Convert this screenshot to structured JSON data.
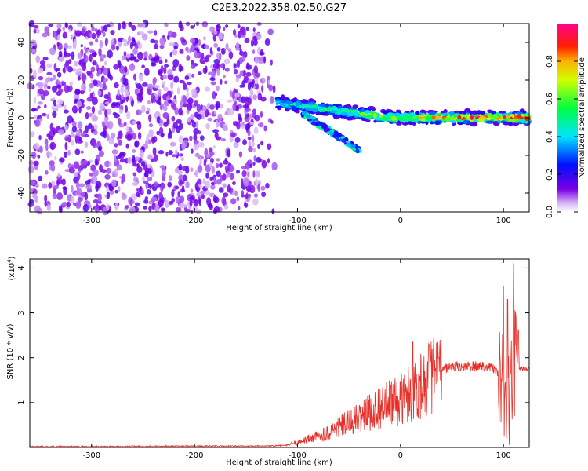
{
  "figure": {
    "title": "C2E3.2022.358.02.50.G27"
  },
  "colorbar": {
    "label": "Normalized spectral amplitude",
    "ticks": [
      "0.0",
      "0.2",
      "0.4",
      "0.6",
      "0.8"
    ],
    "tick_values": [
      0.0,
      0.2,
      0.4,
      0.6,
      0.8
    ],
    "range": [
      0,
      1
    ]
  },
  "chart_data": [
    {
      "type": "heatmap",
      "title": "",
      "xlabel": "Height of straight line (km)",
      "ylabel": "Frequency (Hz)",
      "xlim": [
        -360,
        125
      ],
      "ylim": [
        -50,
        50
      ],
      "x_ticks": [
        -300,
        -200,
        -100,
        0,
        100
      ],
      "x_tick_labels": [
        "-300",
        "-200",
        "-100",
        "0",
        "100"
      ],
      "y_ticks": [
        -40,
        -20,
        0,
        20,
        40
      ],
      "y_tick_labels": [
        "-40",
        "-20",
        "0",
        "20",
        "40"
      ],
      "colormap": "rainbow (white-violet-blue-cyan-green-yellow-red-magenta)",
      "features": [
        {
          "name": "noise field",
          "x": [
            -360,
            -120
          ],
          "y": [
            -50,
            50
          ],
          "amplitude": 0.15
        },
        {
          "name": "main track",
          "x": [
            -120,
            125
          ],
          "y_center": [
            8,
            0
          ],
          "amplitude": 0.9
        },
        {
          "name": "descending branch",
          "x": [
            -95,
            -40
          ],
          "y_center": [
            2,
            -17
          ],
          "amplitude": 0.4
        }
      ]
    },
    {
      "type": "line",
      "title": "",
      "xlabel": "Height of straight line (km)",
      "ylabel": "SNR (10 * v/v)",
      "ylabel_scale": "(x10^4)",
      "y_scale_base": "(x10",
      "y_scale_exp": "4",
      "y_scale_close": ")",
      "xlim": [
        -360,
        125
      ],
      "ylim": [
        0,
        4.2
      ],
      "x_ticks": [
        -300,
        -200,
        -100,
        0,
        100
      ],
      "x_tick_labels": [
        "-300",
        "-200",
        "-100",
        "0",
        "100"
      ],
      "y_ticks": [
        1,
        2,
        3,
        4
      ],
      "y_tick_labels": [
        "1",
        "2",
        "3",
        "4"
      ],
      "color": "#e8302a",
      "x": [
        -360,
        -300,
        -200,
        -130,
        -110,
        -100,
        -80,
        -60,
        -40,
        -20,
        0,
        10,
        20,
        30,
        40,
        50,
        60,
        70,
        80,
        90,
        95,
        100,
        105,
        110,
        115,
        125
      ],
      "y": [
        0.02,
        0.02,
        0.03,
        0.03,
        0.05,
        0.12,
        0.25,
        0.45,
        0.65,
        0.9,
        1.05,
        1.25,
        1.4,
        1.6,
        1.75,
        1.8,
        1.8,
        1.8,
        1.82,
        1.78,
        1.6,
        1.3,
        1.0,
        1.9,
        1.76,
        1.75
      ],
      "spikes": [
        {
          "x": 12,
          "y": 2.35
        },
        {
          "x": 37,
          "y": 2.0
        },
        {
          "x": 100,
          "y": 3.6
        },
        {
          "x": 104,
          "y": 3.3
        },
        {
          "x": 110,
          "y": 4.1
        }
      ]
    }
  ]
}
